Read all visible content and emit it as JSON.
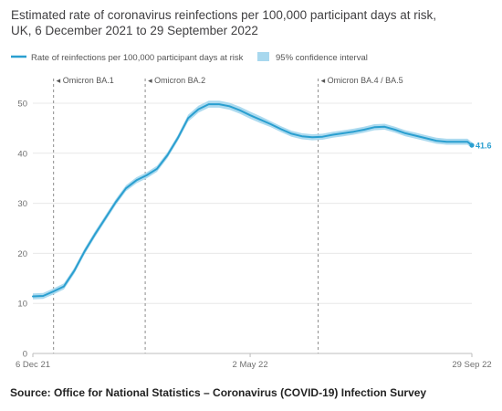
{
  "title_line1": "Estimated rate of coronavirus reinfections per 100,000 participant days at risk,",
  "title_line2": "UK, 6 December 2021 to 29 September 2022",
  "source": "Source: Office for National Statistics – Coronavirus (COVID-19) Infection Survey",
  "colors": {
    "line": "#2a9fd0",
    "ci_band": "#a8d8ee",
    "axis_text": "#707070",
    "gridline": "#e8e8e8",
    "annotation_line": "#8c8c8c"
  },
  "chart_data": {
    "type": "line",
    "title": "Estimated rate of coronavirus reinfections per 100,000 participant days at risk, UK, 6 December 2021 to 29 September 2022",
    "xlabel": "",
    "ylabel": "",
    "x_range": [
      "2021-12-06",
      "2022-09-29"
    ],
    "ylim": [
      0,
      50
    ],
    "y_ticks": [
      0,
      10,
      20,
      30,
      40,
      50
    ],
    "x_tick_labels": [
      {
        "date": "2021-12-06",
        "label": "6 Dec 21"
      },
      {
        "date": "2022-05-02",
        "label": "2 May 22"
      },
      {
        "date": "2022-09-29",
        "label": "29 Sep 22"
      }
    ],
    "grid": "horizontal",
    "legend_position": "top",
    "legend": [
      {
        "label": "Rate of reinfections per 100,000 participant days at risk",
        "kind": "line"
      },
      {
        "label": "95% confidence interval",
        "kind": "band"
      }
    ],
    "annotations": [
      {
        "date": "2021-12-20",
        "label": "◂ Omicron BA.1"
      },
      {
        "date": "2022-02-20",
        "label": "◂ Omicron BA.2"
      },
      {
        "date": "2022-06-17",
        "label": "◂ Omicron BA.4 / BA.5"
      }
    ],
    "end_label": "41.6",
    "series": [
      {
        "name": "Rate of reinfections per 100,000 participant days at risk",
        "points": [
          {
            "x": "2021-12-06",
            "y": 11.4,
            "lo": 10.8,
            "hi": 12.0
          },
          {
            "x": "2021-12-13",
            "y": 11.5,
            "lo": 10.9,
            "hi": 12.1
          },
          {
            "x": "2021-12-20",
            "y": 12.4,
            "lo": 11.8,
            "hi": 13.0
          },
          {
            "x": "2021-12-27",
            "y": 13.4,
            "lo": 12.8,
            "hi": 14.0
          },
          {
            "x": "2022-01-03",
            "y": 16.5,
            "lo": 15.9,
            "hi": 17.1
          },
          {
            "x": "2022-01-10",
            "y": 20.4,
            "lo": 19.8,
            "hi": 21.0
          },
          {
            "x": "2022-01-17",
            "y": 23.8,
            "lo": 23.2,
            "hi": 24.4
          },
          {
            "x": "2022-01-24",
            "y": 27.0,
            "lo": 26.4,
            "hi": 27.6
          },
          {
            "x": "2022-01-31",
            "y": 30.2,
            "lo": 29.6,
            "hi": 30.8
          },
          {
            "x": "2022-02-07",
            "y": 33.0,
            "lo": 32.4,
            "hi": 33.6
          },
          {
            "x": "2022-02-14",
            "y": 34.6,
            "lo": 34.0,
            "hi": 35.2
          },
          {
            "x": "2022-02-21",
            "y": 35.6,
            "lo": 35.0,
            "hi": 36.2
          },
          {
            "x": "2022-02-28",
            "y": 36.9,
            "lo": 36.3,
            "hi": 37.5
          },
          {
            "x": "2022-03-07",
            "y": 39.6,
            "lo": 39.0,
            "hi": 40.2
          },
          {
            "x": "2022-03-14",
            "y": 43.0,
            "lo": 42.4,
            "hi": 43.6
          },
          {
            "x": "2022-03-21",
            "y": 47.0,
            "lo": 46.3,
            "hi": 47.7
          },
          {
            "x": "2022-03-28",
            "y": 48.8,
            "lo": 48.1,
            "hi": 49.5
          },
          {
            "x": "2022-04-04",
            "y": 49.8,
            "lo": 49.1,
            "hi": 50.5
          },
          {
            "x": "2022-04-11",
            "y": 49.8,
            "lo": 49.1,
            "hi": 50.5
          },
          {
            "x": "2022-04-18",
            "y": 49.4,
            "lo": 48.7,
            "hi": 50.1
          },
          {
            "x": "2022-04-25",
            "y": 48.6,
            "lo": 47.9,
            "hi": 49.3
          },
          {
            "x": "2022-05-02",
            "y": 47.6,
            "lo": 46.9,
            "hi": 48.3
          },
          {
            "x": "2022-05-09",
            "y": 46.7,
            "lo": 46.0,
            "hi": 47.4
          },
          {
            "x": "2022-05-16",
            "y": 45.8,
            "lo": 45.2,
            "hi": 46.4
          },
          {
            "x": "2022-05-23",
            "y": 44.8,
            "lo": 44.2,
            "hi": 45.4
          },
          {
            "x": "2022-05-30",
            "y": 43.9,
            "lo": 43.3,
            "hi": 44.5
          },
          {
            "x": "2022-06-06",
            "y": 43.4,
            "lo": 42.8,
            "hi": 44.0
          },
          {
            "x": "2022-06-13",
            "y": 43.2,
            "lo": 42.6,
            "hi": 43.8
          },
          {
            "x": "2022-06-20",
            "y": 43.3,
            "lo": 42.7,
            "hi": 43.9
          },
          {
            "x": "2022-06-27",
            "y": 43.7,
            "lo": 43.1,
            "hi": 44.3
          },
          {
            "x": "2022-07-04",
            "y": 44.0,
            "lo": 43.4,
            "hi": 44.6
          },
          {
            "x": "2022-07-11",
            "y": 44.3,
            "lo": 43.7,
            "hi": 44.9
          },
          {
            "x": "2022-07-18",
            "y": 44.7,
            "lo": 44.1,
            "hi": 45.3
          },
          {
            "x": "2022-07-25",
            "y": 45.2,
            "lo": 44.6,
            "hi": 45.8
          },
          {
            "x": "2022-08-01",
            "y": 45.3,
            "lo": 44.7,
            "hi": 45.9
          },
          {
            "x": "2022-08-08",
            "y": 44.7,
            "lo": 44.1,
            "hi": 45.3
          },
          {
            "x": "2022-08-15",
            "y": 44.0,
            "lo": 43.4,
            "hi": 44.6
          },
          {
            "x": "2022-08-22",
            "y": 43.5,
            "lo": 42.9,
            "hi": 44.1
          },
          {
            "x": "2022-08-29",
            "y": 43.0,
            "lo": 42.4,
            "hi": 43.6
          },
          {
            "x": "2022-09-05",
            "y": 42.5,
            "lo": 41.9,
            "hi": 43.1
          },
          {
            "x": "2022-09-12",
            "y": 42.3,
            "lo": 41.7,
            "hi": 42.9
          },
          {
            "x": "2022-09-19",
            "y": 42.3,
            "lo": 41.7,
            "hi": 42.9
          },
          {
            "x": "2022-09-26",
            "y": 42.3,
            "lo": 41.7,
            "hi": 42.9
          },
          {
            "x": "2022-09-29",
            "y": 41.6,
            "lo": 41.0,
            "hi": 42.2
          }
        ]
      }
    ]
  }
}
